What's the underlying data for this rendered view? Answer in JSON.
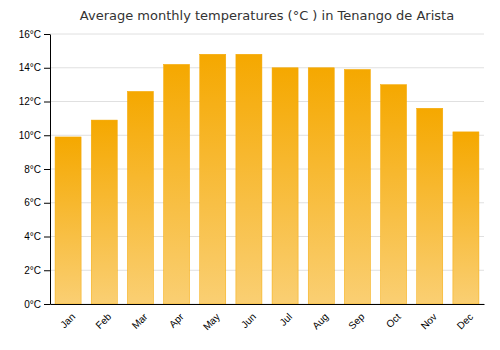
{
  "chart_data": {
    "type": "bar",
    "title": "Average monthly temperatures (°C ) in Tenango de Arista",
    "categories": [
      "Jan",
      "Feb",
      "Mar",
      "Apr",
      "May",
      "Jun",
      "Jul",
      "Aug",
      "Sep",
      "Oct",
      "Nov",
      "Dec"
    ],
    "values": [
      9.9,
      10.9,
      12.6,
      14.2,
      14.8,
      14.8,
      14.0,
      14.0,
      13.9,
      13.0,
      11.6,
      10.2
    ],
    "color": "#F5A800",
    "ylim": [
      0,
      16
    ],
    "yticks": [
      {
        "value": 0,
        "label": "0°C"
      },
      {
        "value": 2,
        "label": "2°C"
      },
      {
        "value": 4,
        "label": "4°C"
      },
      {
        "value": 6,
        "label": "6°C"
      },
      {
        "value": 8,
        "label": "8°C"
      },
      {
        "value": 10,
        "label": "10°C"
      },
      {
        "value": 12,
        "label": "12°C"
      },
      {
        "value": 14,
        "label": "14°C"
      },
      {
        "value": 16,
        "label": "16°C"
      }
    ],
    "grid": true
  }
}
